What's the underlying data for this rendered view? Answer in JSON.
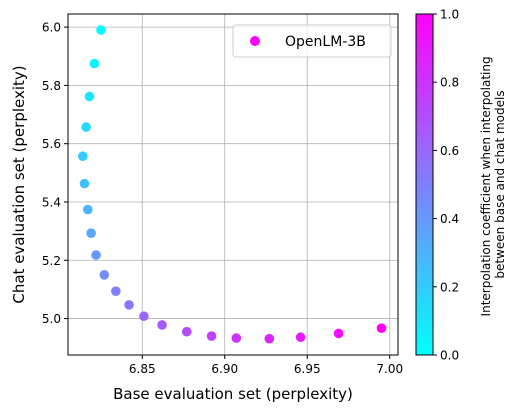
{
  "chart_data": {
    "type": "scatter",
    "xlabel": "Base evaluation set (perplexity)",
    "ylabel": "Chat evaluation set (perplexity)",
    "xlim": [
      6.805,
      7.005
    ],
    "ylim": [
      4.875,
      6.045
    ],
    "xticks": [
      6.85,
      6.9,
      6.95,
      7.0
    ],
    "xtick_labels": [
      "6.85",
      "6.90",
      "6.95",
      "7.00"
    ],
    "yticks": [
      5.0,
      5.2,
      5.4,
      5.6,
      5.8,
      6.0
    ],
    "ytick_labels": [
      "5.0",
      "5.2",
      "5.4",
      "5.6",
      "5.8",
      "6.0"
    ],
    "grid": true,
    "legend": {
      "position": "top-right",
      "entries": [
        {
          "label": "OpenLM-3B",
          "color": "#ff00ff"
        }
      ]
    },
    "colormap": "cool",
    "colors": {
      "cool_start": "#00ffff",
      "cool_end": "#ff00ff"
    },
    "colorbar": {
      "label_lines": [
        "Interpolation coefficient when interpolating",
        "between base and chat models"
      ],
      "range": [
        0.0,
        1.0
      ],
      "ticks": [
        0.0,
        0.2,
        0.4,
        0.6,
        0.8,
        1.0
      ],
      "tick_labels": [
        "0.0",
        "0.2",
        "0.4",
        "0.6",
        "0.8",
        "1.0"
      ]
    },
    "series": [
      {
        "name": "OpenLM-3B",
        "points": [
          {
            "x": 6.825,
            "y": 5.99,
            "c": 0.0
          },
          {
            "x": 6.821,
            "y": 5.875,
            "c": 0.05
          },
          {
            "x": 6.818,
            "y": 5.762,
            "c": 0.1
          },
          {
            "x": 6.816,
            "y": 5.657,
            "c": 0.15
          },
          {
            "x": 6.814,
            "y": 5.557,
            "c": 0.2
          },
          {
            "x": 6.815,
            "y": 5.463,
            "c": 0.25
          },
          {
            "x": 6.817,
            "y": 5.374,
            "c": 0.3
          },
          {
            "x": 6.819,
            "y": 5.293,
            "c": 0.35
          },
          {
            "x": 6.822,
            "y": 5.218,
            "c": 0.4
          },
          {
            "x": 6.827,
            "y": 5.15,
            "c": 0.45
          },
          {
            "x": 6.834,
            "y": 5.094,
            "c": 0.5
          },
          {
            "x": 6.842,
            "y": 5.047,
            "c": 0.55
          },
          {
            "x": 6.851,
            "y": 5.008,
            "c": 0.6
          },
          {
            "x": 6.862,
            "y": 4.978,
            "c": 0.65
          },
          {
            "x": 6.877,
            "y": 4.955,
            "c": 0.7
          },
          {
            "x": 6.892,
            "y": 4.94,
            "c": 0.75
          },
          {
            "x": 6.907,
            "y": 4.933,
            "c": 0.8
          },
          {
            "x": 6.927,
            "y": 4.931,
            "c": 0.85
          },
          {
            "x": 6.946,
            "y": 4.936,
            "c": 0.9
          },
          {
            "x": 6.969,
            "y": 4.949,
            "c": 0.95
          },
          {
            "x": 6.995,
            "y": 4.967,
            "c": 1.0
          }
        ]
      }
    ]
  }
}
